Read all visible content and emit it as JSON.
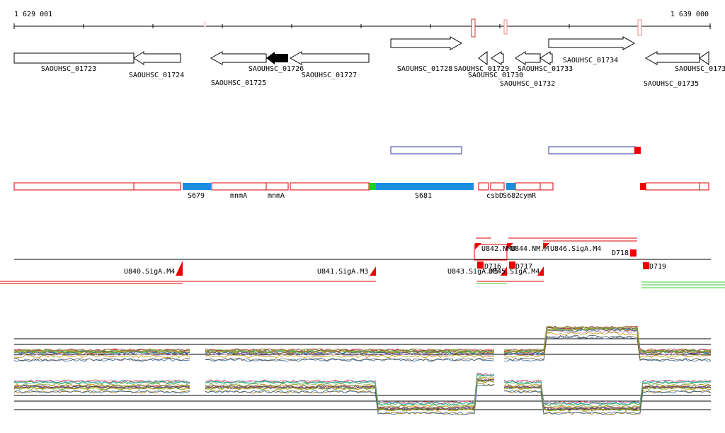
{
  "ruler": {
    "start": "1 629 001",
    "end": "1 639 000"
  },
  "genes": [
    "SAOUHSC_01723",
    "SAOUHSC_01724",
    "SAOUHSC_01725",
    "SAOUHSC_01726",
    "SAOUHSC_01727",
    "SAOUHSC_01728",
    "SAOUHSC_01729",
    "SAOUHSC_01730",
    "SAOUHSC_01732",
    "SAOUHSC_01733",
    "SAOUHSC_01734",
    "SAOUHSC_01735",
    "SAOUHSC_0173"
  ],
  "segments": [
    "S679",
    "mnmA",
    "mnmA",
    "S681",
    "csbD",
    "S682",
    "cymR"
  ],
  "promoters": [
    "U840.SigA.M4",
    "U841.SigA.M3",
    "U842.NMU",
    "U843.SigA.M5",
    "D716",
    "U844.NM.M",
    "U845.SigA.M4",
    "D717",
    "U846.SigA.M4",
    "D718",
    "D719"
  ]
}
